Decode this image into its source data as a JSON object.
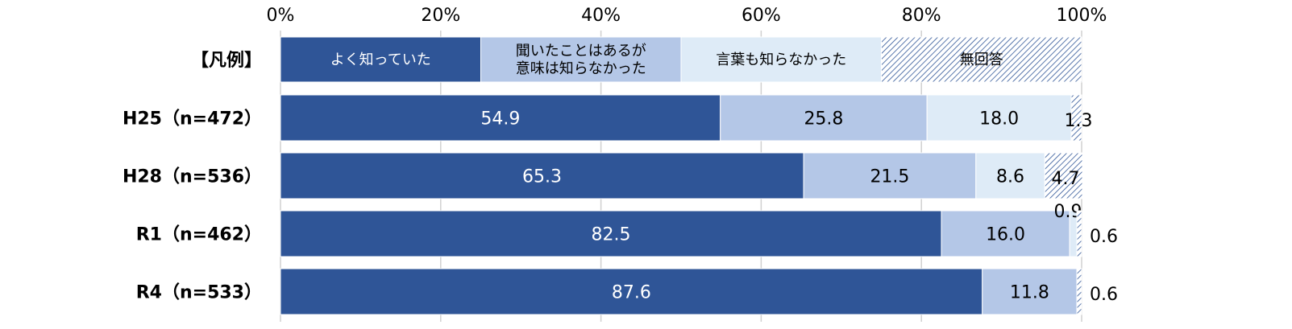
{
  "chart_data": {
    "type": "bar",
    "orientation": "horizontal",
    "stacked": true,
    "xlim": [
      0,
      100
    ],
    "x_ticks": [
      "0%",
      "20%",
      "40%",
      "60%",
      "80%",
      "100%"
    ],
    "grid": true,
    "legend_label": "【凡例】",
    "categories": [
      "H25（n=472）",
      "H28（n=536）",
      "R1（n=462）",
      "R4（n=533）"
    ],
    "series": [
      {
        "name": "よく知っていた",
        "values": [
          54.9,
          65.3,
          82.5,
          87.6
        ],
        "labels": [
          "54.9",
          "65.3",
          "82.5",
          "87.6"
        ]
      },
      {
        "name": "聞いたことはあるが意味は知らなかった",
        "name_lines": [
          "聞いたことはあるが",
          "意味は知らなかった"
        ],
        "values": [
          25.8,
          21.5,
          16.0,
          11.8
        ],
        "labels": [
          "25.8",
          "21.5",
          "16.0",
          "11.8"
        ]
      },
      {
        "name": "言葉も知らなかった",
        "values": [
          18.0,
          8.6,
          0.9,
          0.0
        ],
        "labels": [
          "18.0",
          "8.6",
          "0.9",
          ""
        ]
      },
      {
        "name": "無回答",
        "values": [
          1.3,
          4.7,
          0.6,
          0.6
        ],
        "labels": [
          "1.3",
          "4.7",
          "0.6",
          "0.6"
        ]
      }
    ],
    "colors": [
      "#2f5597",
      "#b4c7e7",
      "#deebf7",
      "#2f5597"
    ]
  }
}
